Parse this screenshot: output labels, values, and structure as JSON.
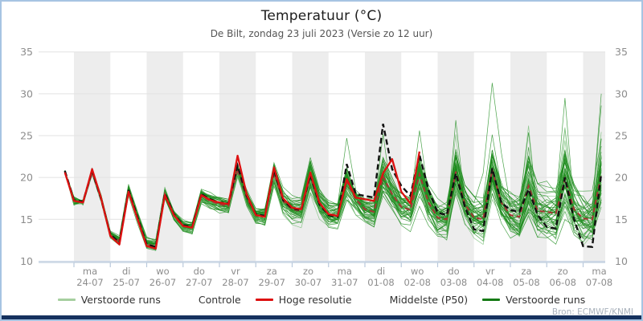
{
  "header": {
    "title": "Temperatuur (°C)",
    "subtitle": "De Bilt, zondag 23 juli 2023 (Versie zo 12 uur)"
  },
  "source_credit": "Bron: ECMWF/KNMI",
  "colors": {
    "frame_border": "#a7c4e2",
    "bottom_bar": "#15315e",
    "band_gray": "#ededed",
    "gridline": "#e2e2e2",
    "axis_line": "#b9c9dc",
    "tick_label": "#8c8c8c",
    "ensemble_dark": "#1e8c1e",
    "ensemble_light": "#74bd74",
    "legend_light_green": "#a6cf9f",
    "legend_dark_green": "#157a15",
    "control_black": "#121212",
    "hires_red": "#dd1111",
    "p50_darkred": "#a63535"
  },
  "legend": {
    "items": [
      {
        "label": "Verstoorde runs",
        "color": "#a6cf9f",
        "style": "solid"
      },
      {
        "label": "Controle",
        "color": "#121212",
        "style": "dashed"
      },
      {
        "label": "Hoge resolutie",
        "color": "#dd1111",
        "style": "solid"
      },
      {
        "label": "Middelste (P50)",
        "color": "#a63535",
        "style": "dashed"
      },
      {
        "label": "Verstoorde runs",
        "color": "#157a15",
        "style": "solid"
      }
    ]
  },
  "chart_data": {
    "type": "line",
    "title": "Temperatuur (°C)",
    "subtitle": "De Bilt, zondag 23 juli 2023 (Versie zo 12 uur)",
    "ylabel": "",
    "xlabel": "",
    "ylim": [
      10,
      35
    ],
    "y_ticks": [
      35,
      30,
      25,
      20,
      15,
      10
    ],
    "y_ticks_both_sides": true,
    "grid": "horizontal",
    "day_bands_alternating": true,
    "legend_position": "bottom",
    "x_start": "zo 23-07 18:00",
    "step_hours": 6,
    "x_ticks": [
      {
        "day": "ma",
        "date": "24-07"
      },
      {
        "day": "di",
        "date": "25-07"
      },
      {
        "day": "wo",
        "date": "26-07"
      },
      {
        "day": "do",
        "date": "27-07"
      },
      {
        "day": "vr",
        "date": "28-07"
      },
      {
        "day": "za",
        "date": "29-07"
      },
      {
        "day": "zo",
        "date": "30-07"
      },
      {
        "day": "ma",
        "date": "31-07"
      },
      {
        "day": "di",
        "date": "01-08"
      },
      {
        "day": "wo",
        "date": "02-08"
      },
      {
        "day": "do",
        "date": "03-08"
      },
      {
        "day": "vr",
        "date": "04-08"
      },
      {
        "day": "za",
        "date": "05-08"
      },
      {
        "day": "zo",
        "date": "06-08"
      },
      {
        "day": "ma",
        "date": "07-08"
      }
    ],
    "series": [
      {
        "name": "Hoge resolutie",
        "style": "solid",
        "color": "#dd1111",
        "width": 2.3,
        "values": [
          20.6,
          17.2,
          17.0,
          21.0,
          17.5,
          13.0,
          12.0,
          18.3,
          15.0,
          11.8,
          11.5,
          17.9,
          15.5,
          14.2,
          14.0,
          17.9,
          17.3,
          17.0,
          16.8,
          22.6,
          18.0,
          15.5,
          15.3,
          21.2,
          17.5,
          16.4,
          16.2,
          20.6,
          17.0,
          15.6,
          15.4,
          19.8,
          17.6,
          17.4,
          17.2,
          20.5,
          22.2,
          18.3,
          16.9,
          23.1
        ]
      },
      {
        "name": "Controle",
        "style": "dashed",
        "color": "#121212",
        "width": 2.4,
        "values": [
          20.8,
          17.3,
          17.1,
          20.8,
          17.4,
          13.2,
          12.2,
          18.5,
          15.2,
          12.0,
          11.7,
          18.1,
          15.6,
          14.3,
          14.1,
          18.0,
          17.4,
          17.0,
          16.9,
          21.4,
          17.8,
          15.6,
          15.4,
          20.9,
          17.3,
          16.3,
          16.1,
          20.3,
          16.8,
          15.5,
          15.3,
          21.6,
          18.0,
          17.8,
          17.6,
          26.4,
          21.0,
          19.0,
          17.8,
          22.7,
          18.5,
          15.8,
          15.5,
          20.5,
          16.5,
          13.8,
          13.6,
          21.1,
          17.0,
          16.1,
          15.9,
          18.6,
          15.5,
          14.1,
          13.9,
          20.0,
          15.0,
          11.8,
          11.7,
          20.5
        ]
      },
      {
        "name": "Middelste (P50)",
        "style": "dashed",
        "color": "#a63535",
        "width": 2.0,
        "values": [
          20.7,
          17.2,
          17.0,
          20.6,
          17.4,
          13.1,
          12.4,
          18.4,
          15.1,
          12.0,
          11.8,
          18.0,
          15.4,
          14.2,
          14.0,
          17.8,
          17.2,
          16.8,
          16.6,
          21.0,
          17.6,
          15.5,
          15.4,
          20.5,
          17.2,
          16.2,
          16.0,
          20.2,
          16.9,
          15.6,
          15.5,
          19.5,
          17.4,
          16.2,
          15.9,
          20.1,
          18.0,
          16.5,
          16.1,
          20.4,
          17.0,
          15.2,
          15.0,
          20.7,
          16.8,
          15.2,
          15.0,
          20.9,
          17.0,
          15.5,
          15.3,
          19.0,
          16.0,
          15.9,
          15.7,
          19.8,
          16.2,
          15.1,
          15.0,
          20.4
        ]
      }
    ],
    "ensemble": {
      "name": "Verstoorde runs",
      "count": 50,
      "seed": 11,
      "spread_base": 0.35,
      "spread_growth": 3.4,
      "clamp": [
        10.3,
        32.5
      ],
      "pinned_outliers": [
        {
          "member": 5,
          "index": 46,
          "value": 20.5
        },
        {
          "member": 5,
          "index": 47,
          "value": 31.3
        },
        {
          "member": 5,
          "index": 48,
          "value": 23.0
        },
        {
          "member": 9,
          "index": 55,
          "value": 29.5
        },
        {
          "member": 3,
          "index": 59,
          "value": 30.0
        },
        {
          "member": 17,
          "index": 59,
          "value": 28.6
        },
        {
          "member": 21,
          "index": 51,
          "value": 26.2
        },
        {
          "member": 11,
          "index": 35,
          "value": 25.2
        },
        {
          "member": 13,
          "index": 31,
          "value": 24.7
        },
        {
          "member": 23,
          "index": 39,
          "value": 25.6
        }
      ]
    }
  }
}
